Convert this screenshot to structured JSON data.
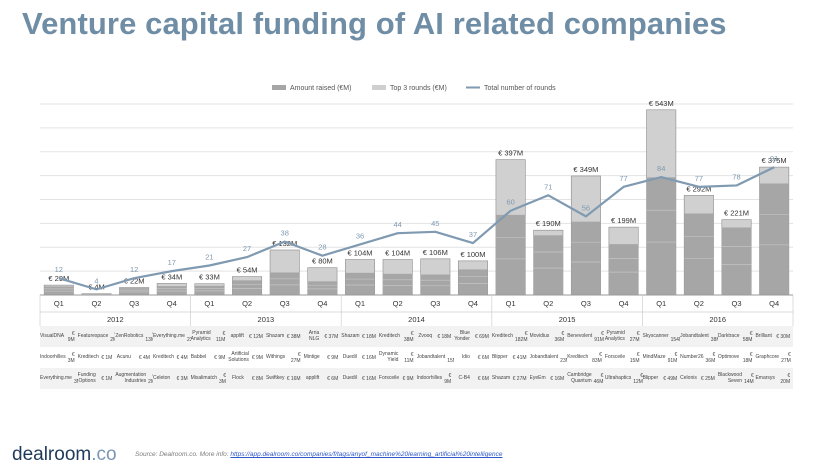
{
  "title": "Venture capital funding of AI related companies",
  "chart_data": {
    "type": "bar",
    "subtype": "stacked bar with line overlay",
    "legend": {
      "position": "top",
      "items": [
        {
          "name": "Amount raised (€M)",
          "color": "#a6a6a6"
        },
        {
          "name": "Top 3 rounds (€M)",
          "color": "#cfcfcf"
        },
        {
          "name": "Total number of rounds",
          "color": "#7f9ab1"
        }
      ]
    },
    "years": [
      "2012",
      "2013",
      "2014",
      "2015",
      "2016"
    ],
    "categories": [
      "Q1",
      "Q2",
      "Q3",
      "Q4",
      "Q1",
      "Q2",
      "Q3",
      "Q4",
      "Q1",
      "Q2",
      "Q3",
      "Q4",
      "Q1",
      "Q2",
      "Q3",
      "Q4",
      "Q1",
      "Q2",
      "Q3",
      "Q4"
    ],
    "bar_labels": [
      "€ 29M",
      "€ 4M",
      "€ 22M",
      "€ 34M",
      "€ 33M",
      "€ 54M",
      "€ 132M",
      "€ 80M",
      "€ 104M",
      "€ 104M",
      "€ 106M",
      "€ 100M",
      "€ 397M",
      "€ 190M",
      "€ 349M",
      "€ 199M",
      "€ 543M",
      "€ 292M",
      "€ 221M",
      "€ 375M"
    ],
    "series": [
      {
        "name": "Amount raised (€M)",
        "values": [
          29,
          4,
          22,
          34,
          33,
          54,
          132,
          80,
          104,
          104,
          106,
          100,
          397,
          190,
          349,
          199,
          543,
          292,
          221,
          375
        ]
      },
      {
        "name": "Top 3 rounds (€M)",
        "values": [
          25,
          3,
          20,
          26,
          27,
          43,
          66,
          40,
          65,
          62,
          60,
          75,
          235,
          175,
          215,
          149,
          345,
          239,
          198,
          327
        ]
      },
      {
        "name": "Total number of rounds",
        "values": [
          12,
          4,
          12,
          17,
          21,
          27,
          38,
          28,
          36,
          44,
          45,
          37,
          60,
          71,
          56,
          77,
          84,
          77,
          78,
          91
        ]
      }
    ],
    "ylim": [
      0,
      560
    ],
    "line_ylim": [
      0,
      136
    ],
    "grid": true
  },
  "top_deals": [
    [
      [
        "VisualDNA",
        "€ 9M"
      ],
      [
        "Featurespace",
        "€ 2M"
      ],
      [
        "ZenRobotics",
        "€ 13M"
      ],
      [
        "Everything.me",
        "€ 23M"
      ],
      [
        "Pyramid Analytics",
        "€ 11M"
      ],
      [
        "applift",
        "€ 12M"
      ],
      [
        "Shazam",
        "€ 38M"
      ],
      [
        "Arria NLG",
        "€ 37M"
      ],
      [
        "Shazam",
        "€ 18M"
      ],
      [
        "Kreditech",
        "€ 38M"
      ],
      [
        "Zvooq",
        "€ 18M"
      ],
      [
        "Blue Yonder",
        "€ 69M"
      ],
      [
        "Kreditech",
        "€ 182M"
      ],
      [
        "Movidius",
        "€ 36M"
      ],
      [
        "Benevolent",
        "€ 91M"
      ],
      [
        "Pyramid Analytics",
        "€ 27M"
      ],
      [
        "Skyscanner",
        "€ 154M"
      ],
      [
        "Jobandtalent",
        "€ 38M"
      ],
      [
        "Darktrace",
        "€ 58M"
      ],
      [
        "Brilliant",
        "€ 30M"
      ]
    ],
    [
      [
        "Indoorhilles",
        "€ 3M"
      ],
      [
        "Kreditech",
        "€ 1M"
      ],
      [
        "Acunu",
        "€ 4M"
      ],
      [
        "Kreditech",
        "€ 4M"
      ],
      [
        "Babbel",
        "€ 9M"
      ],
      [
        "Artificial Solutions",
        "€ 9M"
      ],
      [
        "Withings",
        "€ 27M"
      ],
      [
        "Mintige",
        "€ 9M"
      ],
      [
        "Duedil",
        "€ 16M"
      ],
      [
        "Dynamic Yield",
        "€ 11M"
      ],
      [
        "Jobandtalent",
        "€ 15M"
      ],
      [
        "Idio",
        "€ 6M"
      ],
      [
        "Blipper",
        "€ 41M"
      ],
      [
        "Jobandtalent",
        "€ 23M"
      ],
      [
        "Kreditech",
        "€ 83M"
      ],
      [
        "Forsceile",
        "€ 15M"
      ],
      [
        "MindMaze",
        "€ 91M"
      ],
      [
        "Number26",
        "€ 36M"
      ],
      [
        "Optimove",
        "€ 18M"
      ],
      [
        "Graphcore",
        "€ 27M"
      ]
    ],
    [
      [
        "Everything.me",
        "€ 3M"
      ],
      [
        "Funding Options",
        "€ 1M"
      ],
      [
        "Augmentation Industries",
        "€ 2M"
      ],
      [
        "Celeton",
        "€ 3M"
      ],
      [
        "Mixalimatch",
        "€ 3M"
      ],
      [
        "Flock",
        "€ 8M"
      ],
      [
        "Swiftkey",
        "€ 16M"
      ],
      [
        "applift",
        "€ 6M"
      ],
      [
        "Duedil",
        "€ 16M"
      ],
      [
        "Forsceile",
        "€ 9M"
      ],
      [
        "Indoorhilles",
        "€ 9M"
      ],
      [
        "C-B4",
        "€ 6M"
      ],
      [
        "Shazam",
        "€ 27M"
      ],
      [
        "EyeEm",
        "€ 16M"
      ],
      [
        "Cambridge Quantum",
        "€ 46M"
      ],
      [
        "Ultrahaptics",
        "€ 12M"
      ],
      [
        "Blipper",
        "€ 49M"
      ],
      [
        "Celonis",
        "€ 25M"
      ],
      [
        "Blackwood Seven",
        "€ 14M"
      ],
      [
        "Emarsys",
        "€ 20M"
      ]
    ]
  ],
  "footer": {
    "logo_main": "dealroom",
    "logo_suffix": ".co",
    "source_prefix": "Source: Dealroom.co. More info: ",
    "source_url": "https://app.dealroom.co/companies/f/tags/anyof_machine%20learning_artificial%20intelligence"
  }
}
